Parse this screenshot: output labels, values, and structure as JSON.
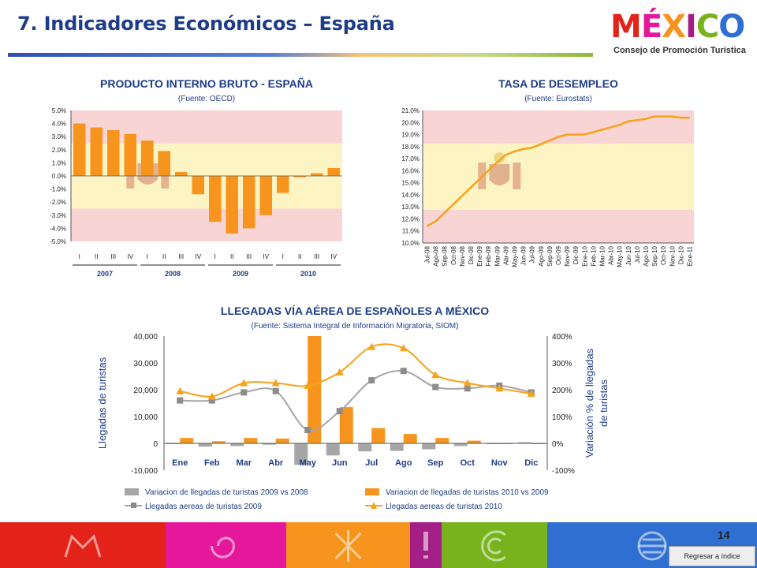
{
  "slide": {
    "title": "7. Indicadores Económicos – España",
    "page_number": "14",
    "back_button": "Regresar a índice",
    "logo": {
      "word": "MÉXICO",
      "subtitle": "Consejo de Promoción Turística"
    }
  },
  "colors": {
    "title": "#1f3c88",
    "bar_orange": "#f7941d",
    "bar_gray": "#a6a6a6",
    "line_orange": "#f7a21b",
    "line_gray": "#a6a6a6",
    "flag_red": "#f8d4d4",
    "flag_yellow": "#fdf4c4",
    "footer": [
      "#e32219",
      "#e5189b",
      "#f7941d",
      "#a31f86",
      "#78b31e",
      "#2f6fd1"
    ]
  },
  "icons": [
    "mural-icon",
    "snail-icon",
    "star-icon",
    "exclamation-icon",
    "wave-icon",
    "sun-icon"
  ],
  "chart_data": [
    {
      "type": "bar",
      "title": "PRODUCTO INTERNO BRUTO - ESPAÑA",
      "subtitle": "(Fuente: OECD)",
      "categories": [
        "I",
        "II",
        "III",
        "IV",
        "I",
        "II",
        "III",
        "IV",
        "I",
        "II",
        "III",
        "IV",
        "I",
        "II",
        "III",
        "IV"
      ],
      "year_groups": [
        {
          "label": "2007",
          "start": 0,
          "end": 3
        },
        {
          "label": "2008",
          "start": 4,
          "end": 7
        },
        {
          "label": "2009",
          "start": 8,
          "end": 11
        },
        {
          "label": "2010",
          "start": 12,
          "end": 15
        }
      ],
      "values": [
        4.0,
        3.7,
        3.5,
        3.2,
        2.7,
        1.9,
        0.3,
        -1.4,
        -3.5,
        -4.4,
        -4.0,
        -3.0,
        -1.3,
        -0.1,
        0.2,
        0.6
      ],
      "ylim": [
        -5.0,
        5.0
      ],
      "yticks": [
        "5.0%",
        "4.0%",
        "3.0%",
        "2.0%",
        "1.0%",
        "0.0%",
        "-1.0%",
        "-2.0%",
        "-3.0%",
        "-4.0%",
        "-5.0%"
      ],
      "background": "spanish flag",
      "grid": false
    },
    {
      "type": "line",
      "title": "TASA DE DESEMPLEO",
      "subtitle": "(Fuente: Eurostats)",
      "x": [
        "Jul-08",
        "Ago-08",
        "Sep-08",
        "Oct-08",
        "Nov-08",
        "Dic-08",
        "Ene-09",
        "Feb-09",
        "Mar-09",
        "Abr-09",
        "May-09",
        "Jun-09",
        "Jul-09",
        "Ago-09",
        "Sep-09",
        "Oct-09",
        "Nov-09",
        "Dic-09",
        "Ene-10",
        "Feb-10",
        "Mar-10",
        "Abr-10",
        "May-10",
        "Jun-10",
        "Jul-10",
        "Ago-10",
        "Sep-10",
        "Oct-10",
        "Nov-10",
        "Dic-10",
        "Ene-11"
      ],
      "values": [
        11.4,
        11.8,
        12.5,
        13.2,
        13.9,
        14.6,
        15.3,
        16.0,
        16.7,
        17.3,
        17.6,
        17.8,
        17.9,
        18.2,
        18.5,
        18.8,
        19.0,
        19.0,
        19.0,
        19.2,
        19.4,
        19.6,
        19.8,
        20.1,
        20.2,
        20.3,
        20.5,
        20.5,
        20.5,
        20.4,
        20.4
      ],
      "ylim": [
        10.0,
        21.0
      ],
      "yticks": [
        "21.0%",
        "20.0%",
        "19.0%",
        "18.0%",
        "17.0%",
        "16.0%",
        "15.0%",
        "14.0%",
        "13.0%",
        "12.0%",
        "11.0%",
        "10.0%"
      ],
      "background": "spanish flag",
      "grid": false
    },
    {
      "type": "bar",
      "title": "LLEGADAS VÍA AÉREA DE ESPAÑOLES A MÉXICO",
      "subtitle": "(Fuente: Sistema Integral de Información Migratoria, SIOM)",
      "categories": [
        "Ene",
        "Feb",
        "Mar",
        "Abr",
        "May",
        "Jun",
        "Jul",
        "Ago",
        "Sep",
        "Oct",
        "Nov",
        "Dic"
      ],
      "ylabel": "Llegadas de turistas",
      "y2label": "Variación % de llegadas de turistas",
      "ylim": [
        -10000,
        40000
      ],
      "yticks": [
        "40,000",
        "30,000",
        "20,000",
        "10,000",
        "0",
        "-10,000"
      ],
      "y2lim": [
        -100,
        400
      ],
      "y2ticks": [
        "400%",
        "300%",
        "200%",
        "100%",
        "0%",
        "-100%"
      ],
      "series": [
        {
          "name": "Variacion de llegadas de turistas  2009 vs 2008",
          "type": "bar",
          "axis": "right",
          "color": "#a6a6a6",
          "values": [
            -3,
            -12,
            -10,
            -5,
            -80,
            -45,
            -30,
            -28,
            -22,
            -10,
            -2,
            4
          ]
        },
        {
          "name": "Variacion de llegadas de turistas  2010 vs 2009",
          "type": "bar",
          "axis": "right",
          "color": "#f7941d",
          "values": [
            20,
            8,
            20,
            18,
            400,
            135,
            57,
            35,
            20,
            10,
            -2,
            -3
          ]
        },
        {
          "name": "Llegadas aereas de turistas 2009",
          "type": "line",
          "marker": "square",
          "axis": "left",
          "color": "#a6a6a6",
          "values": [
            16000,
            16000,
            19000,
            19500,
            5000,
            12000,
            23500,
            27000,
            21000,
            20500,
            21500,
            19000
          ]
        },
        {
          "name": "Llegadas aereas de turistas 2010",
          "type": "line",
          "marker": "triangle",
          "axis": "left",
          "color": "#f7a21b",
          "values": [
            19500,
            17500,
            22500,
            22500,
            21500,
            26500,
            36000,
            35500,
            25500,
            22500,
            20500,
            18500
          ]
        }
      ],
      "legend": "bottom",
      "grid": false
    }
  ]
}
